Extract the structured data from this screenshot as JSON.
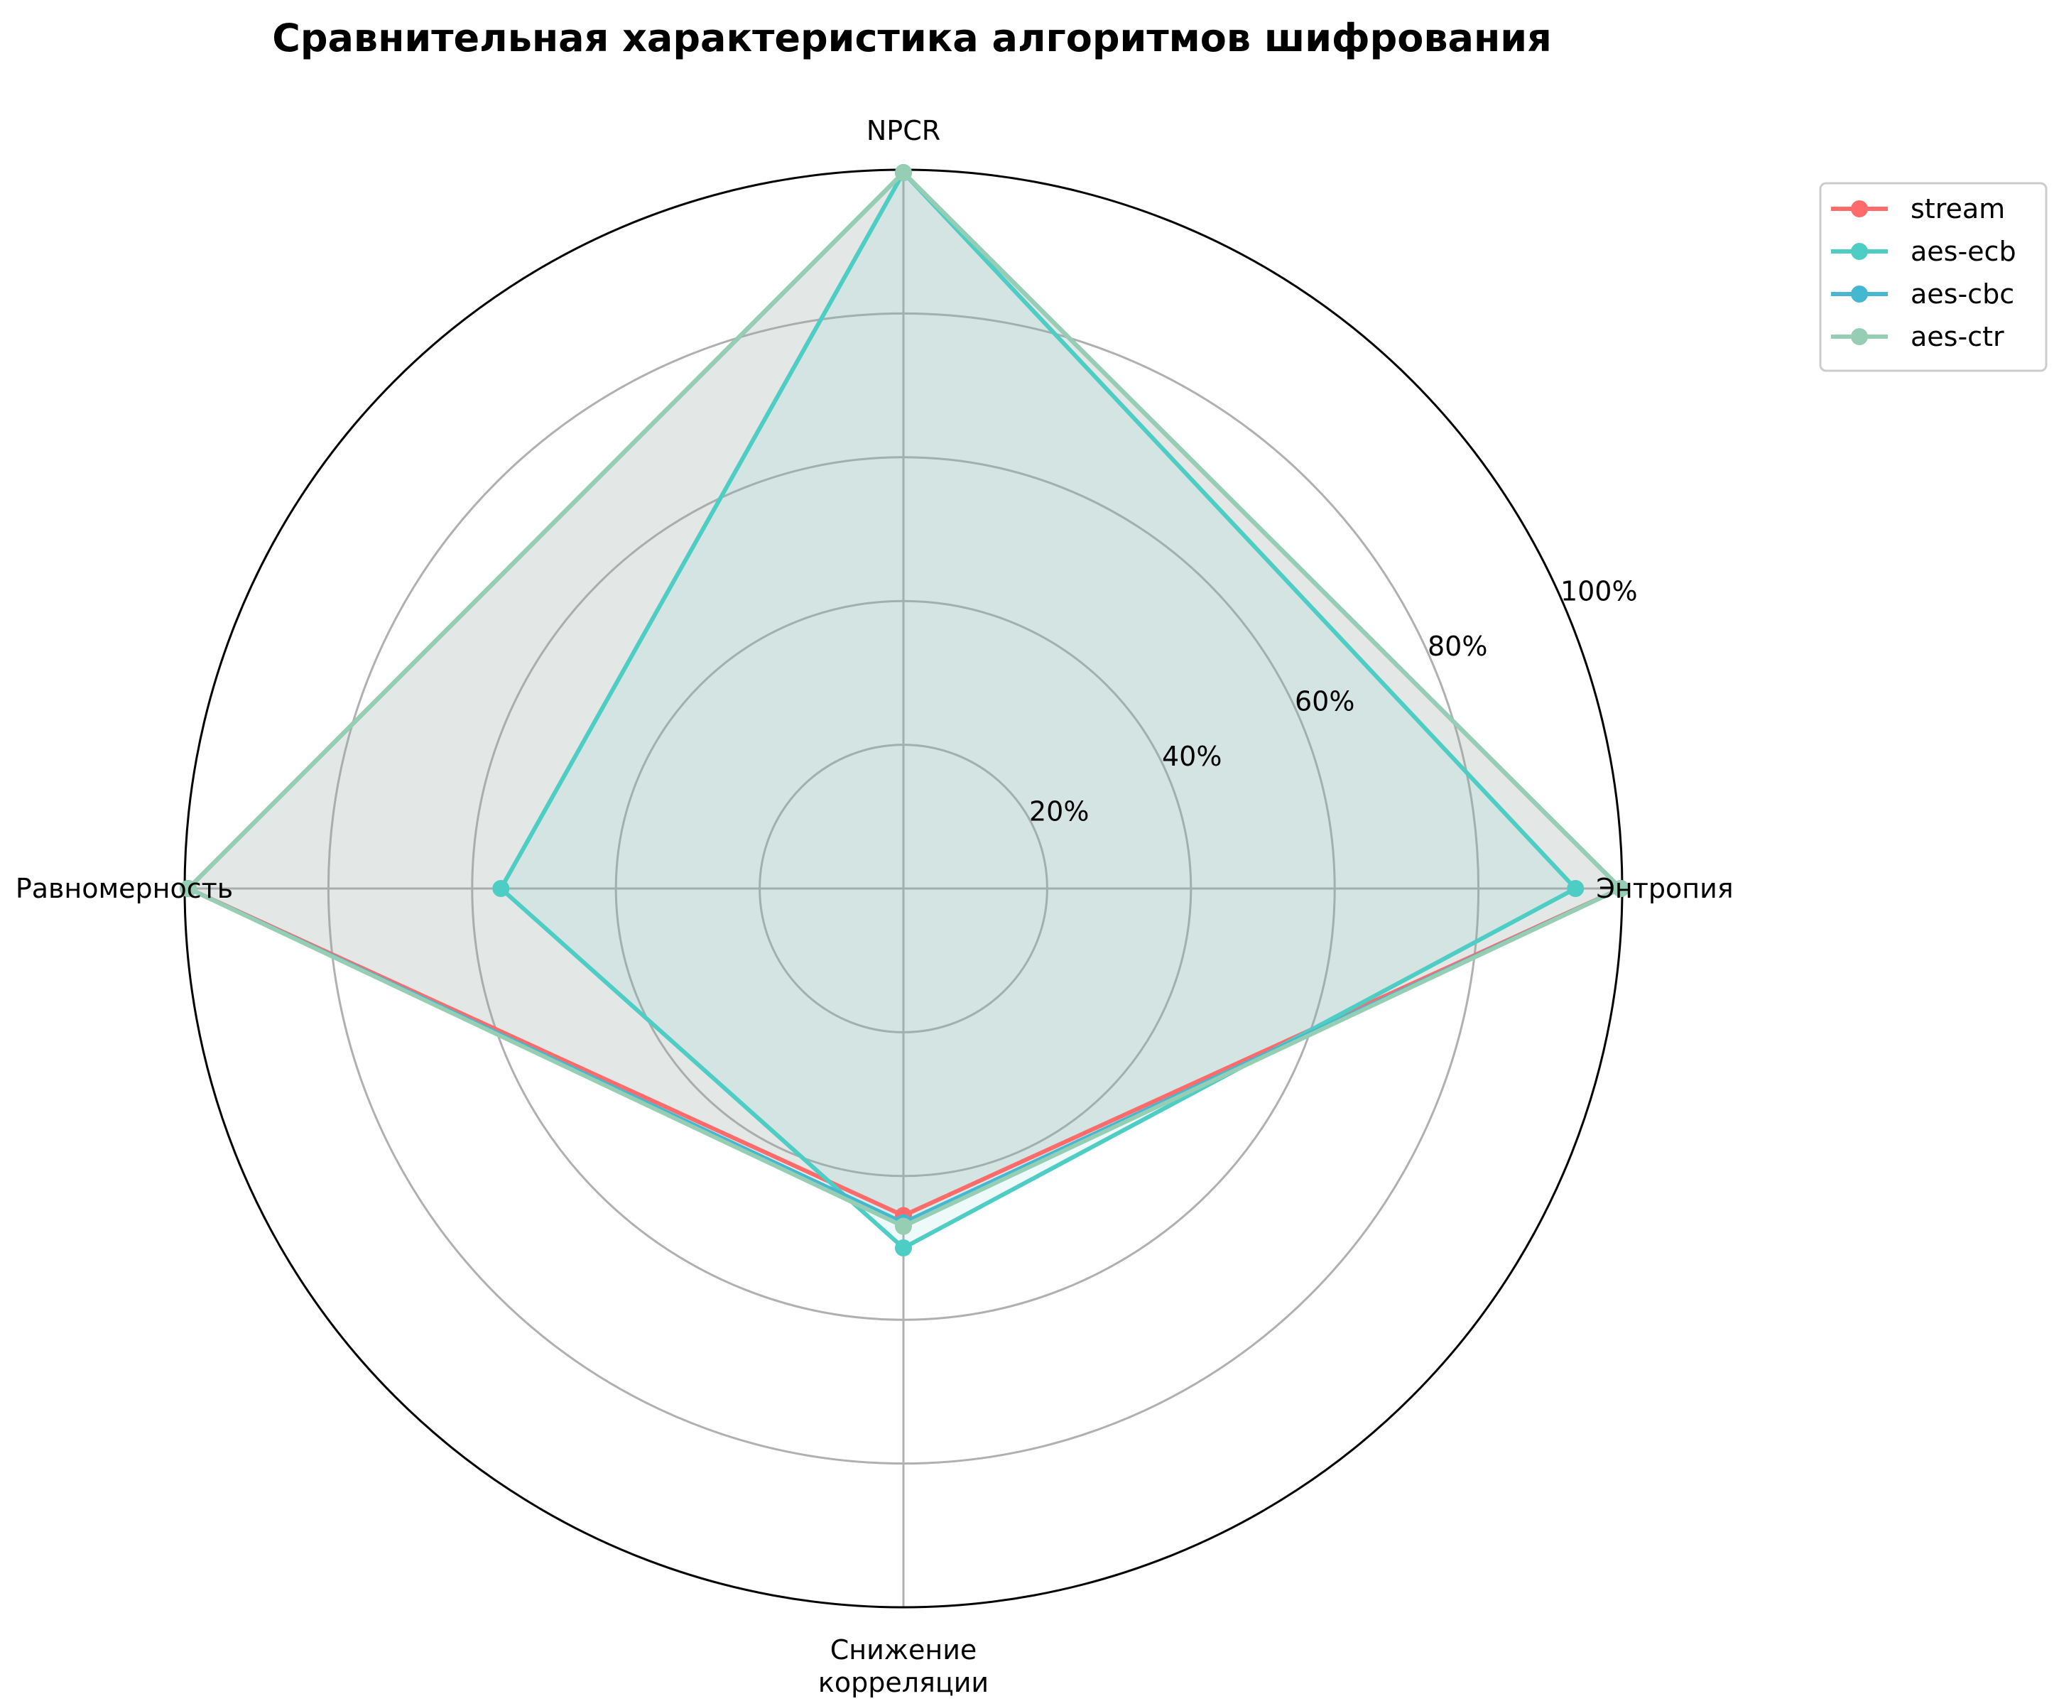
{
  "chart_data": {
    "type": "radar",
    "title": "Сравнительная характеристика алгоритмов шифрования",
    "axes": [
      "Энтропия",
      "NPCR",
      "Равномерность",
      "Снижение корреляции"
    ],
    "axis_label_lines": [
      [
        "Энтропия"
      ],
      [
        "NPCR"
      ],
      [
        "Равномерность"
      ],
      [
        "Снижение",
        "корреляции"
      ]
    ],
    "r_ticks": [
      "20%",
      "40%",
      "60%",
      "80%",
      "100%"
    ],
    "r_tick_values": [
      20,
      40,
      60,
      80,
      100
    ],
    "rlim": [
      0,
      100
    ],
    "grid": true,
    "legend_position": "upper-right-outside",
    "series": [
      {
        "name": "stream",
        "color": "#ff6b6b",
        "values": [
          99.8,
          99.6,
          99.5,
          45.5
        ]
      },
      {
        "name": "aes-ecb",
        "color": "#4ecdc4",
        "values": [
          93.5,
          99.6,
          56.0,
          50.0
        ]
      },
      {
        "name": "aes-cbc",
        "color": "#45b7d1",
        "values": [
          99.8,
          99.6,
          99.5,
          46.5
        ]
      },
      {
        "name": "aes-ctr",
        "color": "#96ceb4",
        "values": [
          99.8,
          99.6,
          99.5,
          47.0
        ]
      }
    ]
  }
}
